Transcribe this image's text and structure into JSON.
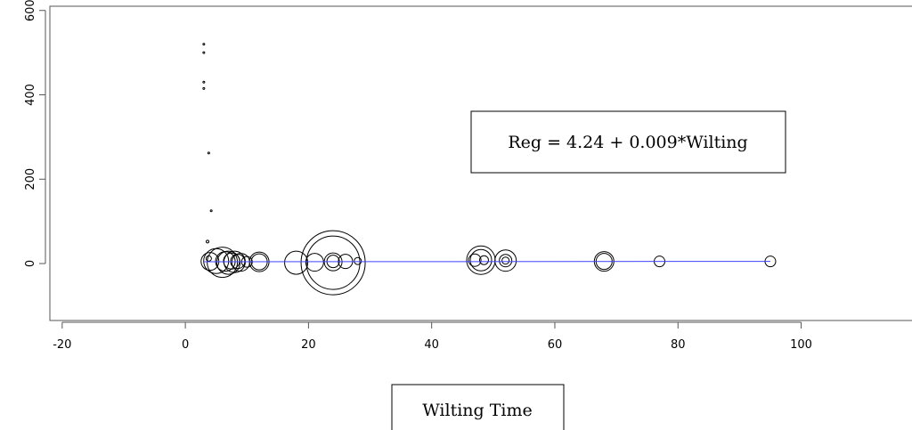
{
  "chart_data": {
    "type": "scatter",
    "title": "",
    "xlabel": "Wilting Time",
    "ylabel": "",
    "xlim": [
      -22,
      118
    ],
    "ylim": [
      -135,
      610
    ],
    "x_ticks": [
      -20,
      0,
      20,
      40,
      60,
      80,
      100
    ],
    "y_ticks": [
      0,
      200,
      400,
      600
    ],
    "grid": false,
    "annotation": "Reg = 4.24 + 0.009*Wilting",
    "regression": {
      "intercept": 4.24,
      "slope": 0.009,
      "x_range": [
        3,
        95
      ],
      "color": "#4040ff"
    },
    "marker_color": "#000000",
    "points": [
      {
        "x": 3,
        "y": 520,
        "r": 1
      },
      {
        "x": 3,
        "y": 500,
        "r": 1
      },
      {
        "x": 3,
        "y": 430,
        "r": 1
      },
      {
        "x": 3,
        "y": 415,
        "r": 1
      },
      {
        "x": 3.8,
        "y": 262,
        "r": 1
      },
      {
        "x": 4.2,
        "y": 125,
        "r": 1
      },
      {
        "x": 3.6,
        "y": 52,
        "r": 1.5
      },
      {
        "x": 3.8,
        "y": 12,
        "r": 3
      },
      {
        "x": 4,
        "y": 5,
        "r": 10
      },
      {
        "x": 5,
        "y": 6,
        "r": 14
      },
      {
        "x": 6,
        "y": 3,
        "r": 17
      },
      {
        "x": 6.5,
        "y": 5,
        "r": 11
      },
      {
        "x": 7,
        "y": 2,
        "r": 13
      },
      {
        "x": 7.5,
        "y": 6,
        "r": 9
      },
      {
        "x": 8,
        "y": 4,
        "r": 12
      },
      {
        "x": 8.5,
        "y": 5,
        "r": 8
      },
      {
        "x": 9,
        "y": 3,
        "r": 10
      },
      {
        "x": 10,
        "y": 4,
        "r": 6
      },
      {
        "x": 12,
        "y": 4,
        "r": 11
      },
      {
        "x": 12,
        "y": 4,
        "r": 9
      },
      {
        "x": 18,
        "y": 2,
        "r": 13
      },
      {
        "x": 21,
        "y": 3,
        "r": 10
      },
      {
        "x": 24,
        "y": 2,
        "r": 36
      },
      {
        "x": 24,
        "y": 2,
        "r": 30
      },
      {
        "x": 24,
        "y": 4,
        "r": 10
      },
      {
        "x": 24,
        "y": 5,
        "r": 7
      },
      {
        "x": 26,
        "y": 5,
        "r": 8
      },
      {
        "x": 28,
        "y": 6,
        "r": 4
      },
      {
        "x": 47,
        "y": 8,
        "r": 7
      },
      {
        "x": 48,
        "y": 8,
        "r": 16
      },
      {
        "x": 48,
        "y": 8,
        "r": 12
      },
      {
        "x": 48.5,
        "y": 8,
        "r": 5
      },
      {
        "x": 52,
        "y": 7,
        "r": 12
      },
      {
        "x": 52,
        "y": 7,
        "r": 7
      },
      {
        "x": 52,
        "y": 7,
        "r": 4
      },
      {
        "x": 68,
        "y": 5,
        "r": 11
      },
      {
        "x": 68,
        "y": 5,
        "r": 9
      },
      {
        "x": 77,
        "y": 5,
        "r": 6
      },
      {
        "x": 95,
        "y": 5,
        "r": 6
      }
    ]
  }
}
